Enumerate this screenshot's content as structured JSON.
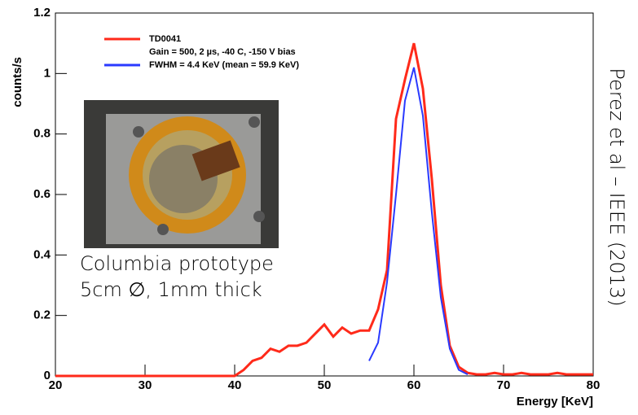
{
  "chart_data": {
    "type": "line",
    "ylabel": "counts/s",
    "xlabel": "Energy [KeV]",
    "annotations": [
      "Columbia prototype",
      "5cm ∅, 1mm thick",
      "Perez et al – IEEE (2013)"
    ],
    "legend_note": "Gain = 500, 2 µs, -40 C, -150 V bias",
    "xlim": [
      20,
      80
    ],
    "xticks": [
      20,
      30,
      40,
      50,
      60,
      70,
      80
    ],
    "ylim": [
      0,
      1.2
    ],
    "yticks": [
      0,
      0.2,
      0.4,
      0.6,
      0.8,
      1,
      1.2
    ],
    "x": [
      20,
      21,
      22,
      23,
      24,
      25,
      26,
      27,
      28,
      29,
      30,
      31,
      32,
      33,
      34,
      35,
      36,
      37,
      38,
      39,
      40,
      41,
      42,
      43,
      44,
      45,
      46,
      47,
      48,
      49,
      50,
      51,
      52,
      53,
      54,
      55,
      56,
      57,
      58,
      59,
      60,
      61,
      62,
      63,
      64,
      65,
      66,
      67,
      68,
      69,
      70,
      71,
      72,
      73,
      74,
      75,
      76,
      77,
      78,
      79,
      80
    ],
    "series": [
      {
        "name": "TD0041",
        "color": "#ff2a1a",
        "values": [
          0,
          0,
          0,
          0,
          0,
          0,
          0,
          0,
          0,
          0,
          0,
          0,
          0,
          0,
          0,
          0,
          0,
          0,
          0,
          0,
          0,
          0.02,
          0.05,
          0.06,
          0.09,
          0.08,
          0.1,
          0.1,
          0.11,
          0.14,
          0.17,
          0.13,
          0.16,
          0.14,
          0.15,
          0.15,
          0.22,
          0.35,
          0.85,
          0.98,
          1.1,
          0.95,
          0.65,
          0.3,
          0.1,
          0.03,
          0.01,
          0.005,
          0.005,
          0.01,
          0.005,
          0.005,
          0.01,
          0.005,
          0.005,
          0.005,
          0.01,
          0.005,
          0.005,
          0.005,
          0.005
        ]
      },
      {
        "name": "FWHM = 4.4 KeV (mean = 59.9 KeV)",
        "color": "#2a3aff",
        "values": [
          null,
          null,
          null,
          null,
          null,
          null,
          null,
          null,
          null,
          null,
          null,
          null,
          null,
          null,
          null,
          null,
          null,
          null,
          null,
          null,
          null,
          null,
          null,
          null,
          null,
          null,
          null,
          null,
          null,
          null,
          null,
          null,
          null,
          null,
          null,
          0.05,
          0.11,
          0.31,
          0.6,
          0.91,
          1.02,
          0.86,
          0.54,
          0.26,
          0.09,
          0.02,
          0.005,
          null,
          null,
          null,
          null,
          null,
          null,
          null,
          null,
          null,
          null,
          null,
          null,
          null,
          null
        ]
      }
    ]
  }
}
